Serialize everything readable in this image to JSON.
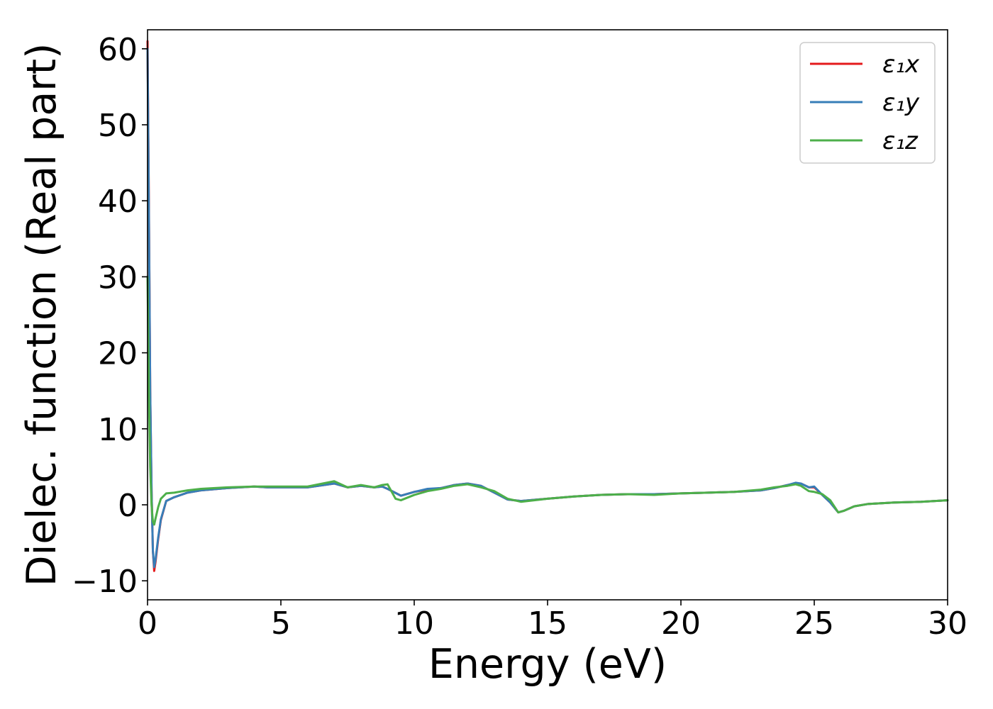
{
  "chart_data": {
    "type": "line",
    "title": "",
    "xlabel": "Energy (eV)",
    "ylabel": "Dielec. function (Real part)",
    "xlim": [
      0,
      30
    ],
    "ylim": [
      -12.5,
      62.5
    ],
    "xticks": [
      0,
      5,
      10,
      15,
      20,
      25,
      30
    ],
    "xtick_labels": [
      "0",
      "5",
      "10",
      "15",
      "20",
      "25",
      "30"
    ],
    "yticks": [
      -10,
      0,
      10,
      20,
      30,
      40,
      50,
      60
    ],
    "ytick_labels": [
      "−10",
      "0",
      "10",
      "20",
      "30",
      "40",
      "50",
      "60"
    ],
    "grid": false,
    "legend_position": "top-right",
    "series": [
      {
        "name": "ε₁x",
        "color": "#e41a1c",
        "x": [
          0,
          0.05,
          0.1,
          0.15,
          0.2,
          0.25,
          0.3,
          0.4,
          0.5,
          0.7,
          1.0,
          1.5,
          2.0,
          3.0,
          4.0,
          4.5,
          5.0,
          6.0,
          7.0,
          7.5,
          8.0,
          8.5,
          8.8,
          9.0,
          9.5,
          10.0,
          10.5,
          11.0,
          11.5,
          12.0,
          12.5,
          13.0,
          13.5,
          14.0,
          15.0,
          16.0,
          17.0,
          18.0,
          19.0,
          20.0,
          21.0,
          22.0,
          23.0,
          23.5,
          24.0,
          24.3,
          24.5,
          24.8,
          25.0,
          25.3,
          25.6,
          25.9,
          26.1,
          26.5,
          27.0,
          28.0,
          29.0,
          30.0
        ],
        "values": [
          61,
          40,
          15,
          2,
          -6,
          -8.7,
          -7.5,
          -4.5,
          -2,
          0.5,
          1.0,
          1.6,
          1.9,
          2.2,
          2.4,
          2.3,
          2.3,
          2.3,
          2.8,
          2.3,
          2.5,
          2.3,
          2.4,
          2.1,
          1.2,
          1.7,
          2.0,
          2.2,
          2.6,
          2.8,
          2.5,
          1.6,
          0.7,
          0.5,
          0.8,
          1.1,
          1.3,
          1.4,
          1.4,
          1.5,
          1.6,
          1.7,
          1.9,
          2.2,
          2.6,
          2.8,
          2.8,
          2.3,
          2.3,
          1.3,
          0.3,
          -1.0,
          -0.8,
          -0.2,
          0.1,
          0.3,
          0.4,
          0.6
        ]
      },
      {
        "name": "ε₁y",
        "color": "#377eb8",
        "x": [
          0,
          0.05,
          0.1,
          0.15,
          0.2,
          0.25,
          0.3,
          0.4,
          0.5,
          0.7,
          1.0,
          1.5,
          2.0,
          3.0,
          4.0,
          4.5,
          5.0,
          6.0,
          7.0,
          7.5,
          8.0,
          8.5,
          8.8,
          9.0,
          9.5,
          10.0,
          10.5,
          11.0,
          11.5,
          12.0,
          12.5,
          13.0,
          13.5,
          14.0,
          15.0,
          16.0,
          17.0,
          18.0,
          19.0,
          20.0,
          21.0,
          22.0,
          23.0,
          23.5,
          24.0,
          24.3,
          24.5,
          24.8,
          25.0,
          25.3,
          25.6,
          25.9,
          26.1,
          26.5,
          27.0,
          28.0,
          29.0,
          30.0
        ],
        "values": [
          60,
          39,
          15,
          2,
          -6,
          -8.2,
          -7.2,
          -4.3,
          -1.9,
          0.5,
          1.0,
          1.6,
          1.9,
          2.2,
          2.4,
          2.3,
          2.3,
          2.3,
          2.8,
          2.3,
          2.5,
          2.3,
          2.4,
          2.1,
          1.2,
          1.7,
          2.1,
          2.2,
          2.6,
          2.8,
          2.5,
          1.6,
          0.7,
          0.5,
          0.8,
          1.1,
          1.3,
          1.4,
          1.4,
          1.5,
          1.6,
          1.7,
          1.9,
          2.2,
          2.6,
          2.9,
          2.8,
          2.3,
          2.4,
          1.3,
          0.3,
          -1.0,
          -0.8,
          -0.2,
          0.1,
          0.3,
          0.4,
          0.6
        ]
      },
      {
        "name": "ε₁z",
        "color": "#4daf4a",
        "x": [
          0,
          0.05,
          0.1,
          0.15,
          0.2,
          0.25,
          0.3,
          0.4,
          0.5,
          0.7,
          1.0,
          1.5,
          2.0,
          3.0,
          4.0,
          4.5,
          5.0,
          6.0,
          7.0,
          7.5,
          8.0,
          8.5,
          8.8,
          9.0,
          9.3,
          9.5,
          10.0,
          10.5,
          11.0,
          11.5,
          12.0,
          12.5,
          13.0,
          13.5,
          14.0,
          15.0,
          16.0,
          17.0,
          18.0,
          19.0,
          20.0,
          21.0,
          22.0,
          23.0,
          23.5,
          24.0,
          24.3,
          24.5,
          24.8,
          25.0,
          25.3,
          25.6,
          25.9,
          26.1,
          26.5,
          27.0,
          28.0,
          29.0,
          30.0
        ],
        "values": [
          30,
          15,
          5,
          0,
          -2.2,
          -2.6,
          -1.8,
          -0.3,
          0.8,
          1.5,
          1.6,
          1.9,
          2.1,
          2.3,
          2.4,
          2.4,
          2.4,
          2.4,
          3.1,
          2.3,
          2.6,
          2.3,
          2.6,
          2.7,
          0.8,
          0.6,
          1.3,
          1.8,
          2.1,
          2.5,
          2.7,
          2.3,
          1.8,
          0.8,
          0.4,
          0.8,
          1.1,
          1.3,
          1.4,
          1.3,
          1.5,
          1.6,
          1.7,
          2.0,
          2.3,
          2.5,
          2.7,
          2.5,
          1.8,
          1.7,
          1.4,
          0.6,
          -1.0,
          -0.8,
          -0.2,
          0.1,
          0.3,
          0.4,
          0.6
        ]
      }
    ]
  }
}
